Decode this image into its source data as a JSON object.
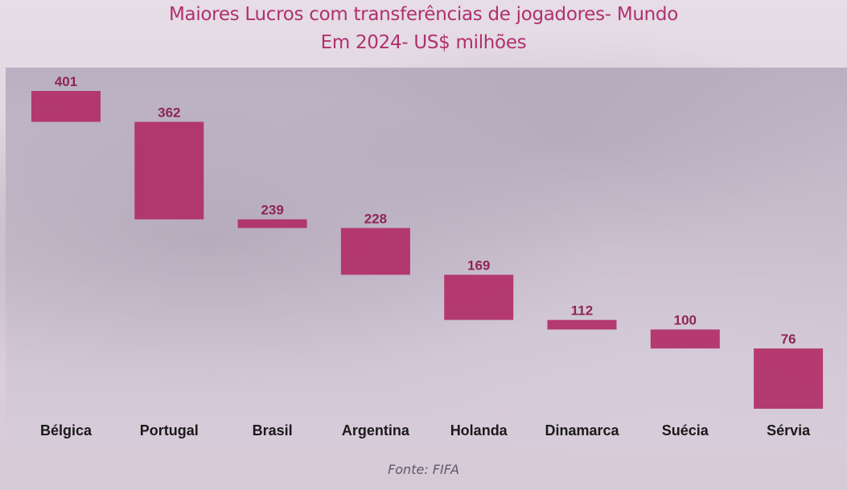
{
  "title_line1": "Maiores Lucros com transferências de jogadores- Mundo",
  "title_line2": "Em 2024- US$ milhões",
  "source": "Fonte: FIFA",
  "colors": {
    "bar": "#b02a66",
    "label": "#8e2556",
    "category": "#1a1a1a",
    "title": "#b0306e"
  },
  "chart_data": {
    "type": "bar",
    "subtype": "waterfall",
    "categories": [
      "Bélgica",
      "Portugal",
      "Brasil",
      "Argentina",
      "Holanda",
      "Dinamarca",
      "Suécia",
      "Sérvia"
    ],
    "values": [
      401,
      362,
      239,
      228,
      169,
      112,
      100,
      76
    ],
    "title": "Maiores Lucros com transferências de jogadores- Mundo",
    "subtitle": "Em 2024- US$ milhões",
    "xlabel": "",
    "ylabel": "",
    "grid": false,
    "legend": "none"
  }
}
